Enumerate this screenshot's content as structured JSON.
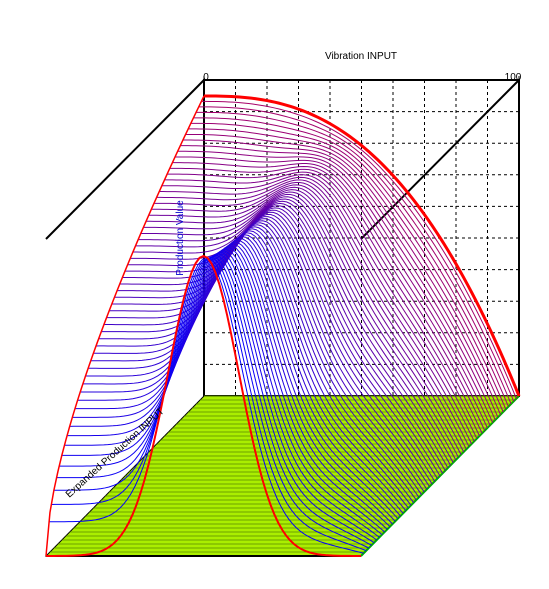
{
  "chart_data": {
    "type": "surface-3d",
    "title": "",
    "xlabel": "Vibration INPUT",
    "ylabel": "Production Value",
    "zlabel": "Expanded Production INPUT",
    "x_tick_labels": [
      "0",
      "100"
    ],
    "xlim": [
      0,
      100
    ],
    "grid": true,
    "surface": {
      "function": "peak curve rising along Expanded Production INPUT, hump-shaped along Vibration INPUT",
      "x_samples": [
        0,
        10,
        20,
        30,
        40,
        50,
        60,
        70,
        80,
        90,
        100
      ],
      "front_curve_values": [
        0.0,
        0.02,
        0.1,
        0.35,
        0.75,
        1.0,
        0.75,
        0.35,
        0.1,
        0.02,
        0.0
      ],
      "back_curve_values": [
        1.0,
        1.0,
        0.99,
        0.97,
        0.93,
        0.87,
        0.78,
        0.65,
        0.48,
        0.25,
        0.0
      ],
      "line_count": 60
    },
    "colors": {
      "surface_front": "#0000ff",
      "surface_back": "#ff0000",
      "floor_fill": "#aaee00",
      "floor_lines": "#5a8a00",
      "edge_line": "#ff0000",
      "grid": "#000000",
      "ylabel_color": "#0000cc"
    }
  }
}
